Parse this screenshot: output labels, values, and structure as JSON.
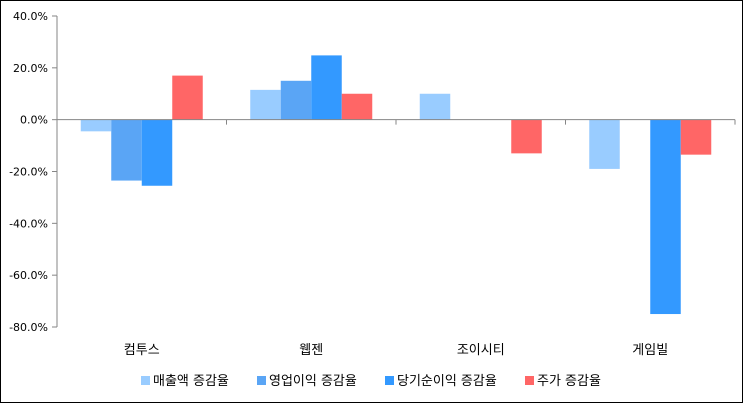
{
  "chart_data": {
    "type": "bar",
    "categories": [
      "컴투스",
      "웹젠",
      "조이시티",
      "게임빌"
    ],
    "series": [
      {
        "name": "매출액 증감율",
        "color": "#99CCFF",
        "values": [
          -4.5,
          11.5,
          10.0,
          -19.0
        ]
      },
      {
        "name": "영업이익 증감율",
        "color": "#5AA5F5",
        "values": [
          -23.5,
          15.0,
          null,
          null
        ]
      },
      {
        "name": "당기순이익 증감율",
        "color": "#3399FF",
        "values": [
          -25.5,
          24.8,
          null,
          -75.0
        ]
      },
      {
        "name": "주가 증감율",
        "color": "#FF6666",
        "values": [
          17.0,
          10.0,
          -13.0,
          -13.5
        ]
      }
    ],
    "ylim": [
      -80,
      40
    ],
    "yticks": [
      -80,
      -60,
      -40,
      -20,
      0,
      20,
      40
    ],
    "ytick_labels": [
      "-80.0%",
      "-60.0%",
      "-40.0%",
      "-20.0%",
      "0.0%",
      "20.0%",
      "40.0%"
    ],
    "legend_position": "bottom",
    "grid": false
  }
}
